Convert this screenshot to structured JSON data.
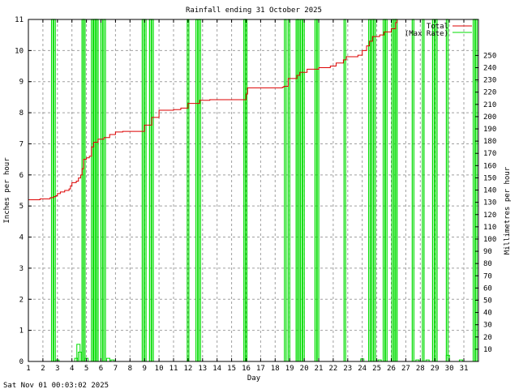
{
  "chart_data": {
    "type": "line",
    "title": "Rainfall ending 31 October 2025",
    "xlabel": "Day",
    "ylabel": "Inches per hour",
    "y2label": "Millimetres per hour",
    "footer": "Sat Nov 01 00:03:02 2025",
    "xlim": [
      1,
      32
    ],
    "ylim": [
      0,
      11
    ],
    "y2lim": [
      0,
      279.4
    ],
    "grid": true,
    "legend_position": "top-right-inside",
    "x_ticks": [
      1,
      2,
      3,
      4,
      5,
      6,
      7,
      8,
      9,
      10,
      11,
      12,
      13,
      14,
      15,
      16,
      17,
      18,
      19,
      20,
      21,
      22,
      23,
      24,
      25,
      26,
      27,
      28,
      29,
      30,
      31
    ],
    "y_ticks": [
      0,
      1,
      2,
      3,
      4,
      5,
      6,
      7,
      8,
      9,
      10,
      11
    ],
    "y2_ticks": [
      10,
      20,
      30,
      40,
      50,
      60,
      70,
      80,
      90,
      100,
      110,
      120,
      130,
      140,
      150,
      160,
      170,
      180,
      190,
      200,
      210,
      220,
      230,
      240,
      250
    ],
    "colors": {
      "total": "#dd0000",
      "max_rate": "#00dd00",
      "grid": "#a0a0a0",
      "axis": "#000000"
    },
    "series": [
      {
        "name": "Total",
        "color": "#dd0000",
        "axis": "left",
        "note": "Cumulative rainfall (inches); line exits top of plot after ~day 26.3",
        "points": [
          [
            1.0,
            5.2
          ],
          [
            1.8,
            5.2
          ],
          [
            1.8,
            5.23
          ],
          [
            2.5,
            5.23
          ],
          [
            2.5,
            5.27
          ],
          [
            2.75,
            5.27
          ],
          [
            2.75,
            5.3
          ],
          [
            2.9,
            5.33
          ],
          [
            3.0,
            5.4
          ],
          [
            3.2,
            5.45
          ],
          [
            3.5,
            5.5
          ],
          [
            3.8,
            5.55
          ],
          [
            3.9,
            5.65
          ],
          [
            4.0,
            5.75
          ],
          [
            4.3,
            5.8
          ],
          [
            4.45,
            5.9
          ],
          [
            4.6,
            6.0
          ],
          [
            4.7,
            6.2
          ],
          [
            4.8,
            6.5
          ],
          [
            5.0,
            6.55
          ],
          [
            5.2,
            6.6
          ],
          [
            5.35,
            6.9
          ],
          [
            5.5,
            7.05
          ],
          [
            5.8,
            7.15
          ],
          [
            6.2,
            7.2
          ],
          [
            6.6,
            7.3
          ],
          [
            7.0,
            7.38
          ],
          [
            7.5,
            7.4
          ],
          [
            9.0,
            7.4
          ],
          [
            9.0,
            7.6
          ],
          [
            9.35,
            7.6
          ],
          [
            9.5,
            7.85
          ],
          [
            9.9,
            7.85
          ],
          [
            10.0,
            8.08
          ],
          [
            11.0,
            8.1
          ],
          [
            11.5,
            8.15
          ],
          [
            12.0,
            8.3
          ],
          [
            12.6,
            8.3
          ],
          [
            12.8,
            8.4
          ],
          [
            13.5,
            8.42
          ],
          [
            15.9,
            8.42
          ],
          [
            16.0,
            8.6
          ],
          [
            16.1,
            8.8
          ],
          [
            18.5,
            8.82
          ],
          [
            18.6,
            8.85
          ],
          [
            18.9,
            9.1
          ],
          [
            19.5,
            9.2
          ],
          [
            19.7,
            9.3
          ],
          [
            20.2,
            9.4
          ],
          [
            20.6,
            9.4
          ],
          [
            21.0,
            9.45
          ],
          [
            21.8,
            9.5
          ],
          [
            22.2,
            9.6
          ],
          [
            22.7,
            9.7
          ],
          [
            22.9,
            9.8
          ],
          [
            23.7,
            9.85
          ],
          [
            24.0,
            10.0
          ],
          [
            24.3,
            10.15
          ],
          [
            24.5,
            10.3
          ],
          [
            24.7,
            10.45
          ],
          [
            25.2,
            10.5
          ],
          [
            25.5,
            10.6
          ],
          [
            26.0,
            10.7
          ],
          [
            26.3,
            10.9
          ],
          [
            26.4,
            11.0
          ]
        ]
      },
      {
        "name": "(Max Rate)",
        "color": "#00dd00",
        "axis": "left",
        "note": "Max hourly rate (in/hr); many spikes exceed chart top (off-scale)",
        "spikes_offscale_days": [
          2.65,
          2.8,
          4.75,
          4.85,
          5.4,
          5.55,
          5.65,
          5.75,
          6.05,
          6.25,
          8.9,
          9.05,
          9.4,
          9.55,
          12.0,
          12.6,
          12.8,
          15.9,
          16.0,
          18.7,
          18.95,
          19.5,
          19.6,
          19.8,
          19.95,
          20.8,
          20.95,
          22.8,
          24.5,
          24.7,
          24.85,
          25.5,
          25.65,
          26.1,
          26.25,
          26.35,
          27.5,
          28.2,
          28.9,
          29.1,
          29.85,
          31.7,
          31.85
        ],
        "small_values": [
          {
            "day": 3.0,
            "value": 0.05
          },
          {
            "day": 4.3,
            "value": 0.1
          },
          {
            "day": 4.45,
            "value": 0.55
          },
          {
            "day": 4.55,
            "value": 0.3
          },
          {
            "day": 5.0,
            "value": 0.1
          },
          {
            "day": 6.5,
            "value": 0.1
          },
          {
            "day": 6.8,
            "value": 0.05
          },
          {
            "day": 24.0,
            "value": 0.08
          },
          {
            "day": 25.2,
            "value": 0.05
          },
          {
            "day": 27.8,
            "value": 0.05
          },
          {
            "day": 28.5,
            "value": 0.05
          },
          {
            "day": 29.9,
            "value": 0.2
          },
          {
            "day": 30.8,
            "value": 0.05
          }
        ]
      }
    ]
  },
  "labels": {
    "title": "Rainfall ending 31 October 2025",
    "xlabel": "Day",
    "ylabel": "Inches per hour",
    "y2label": "Millimetres per hour",
    "footer": "Sat Nov 01 00:03:02 2025",
    "legend_total": "Total",
    "legend_rate": "(Max Rate)"
  }
}
